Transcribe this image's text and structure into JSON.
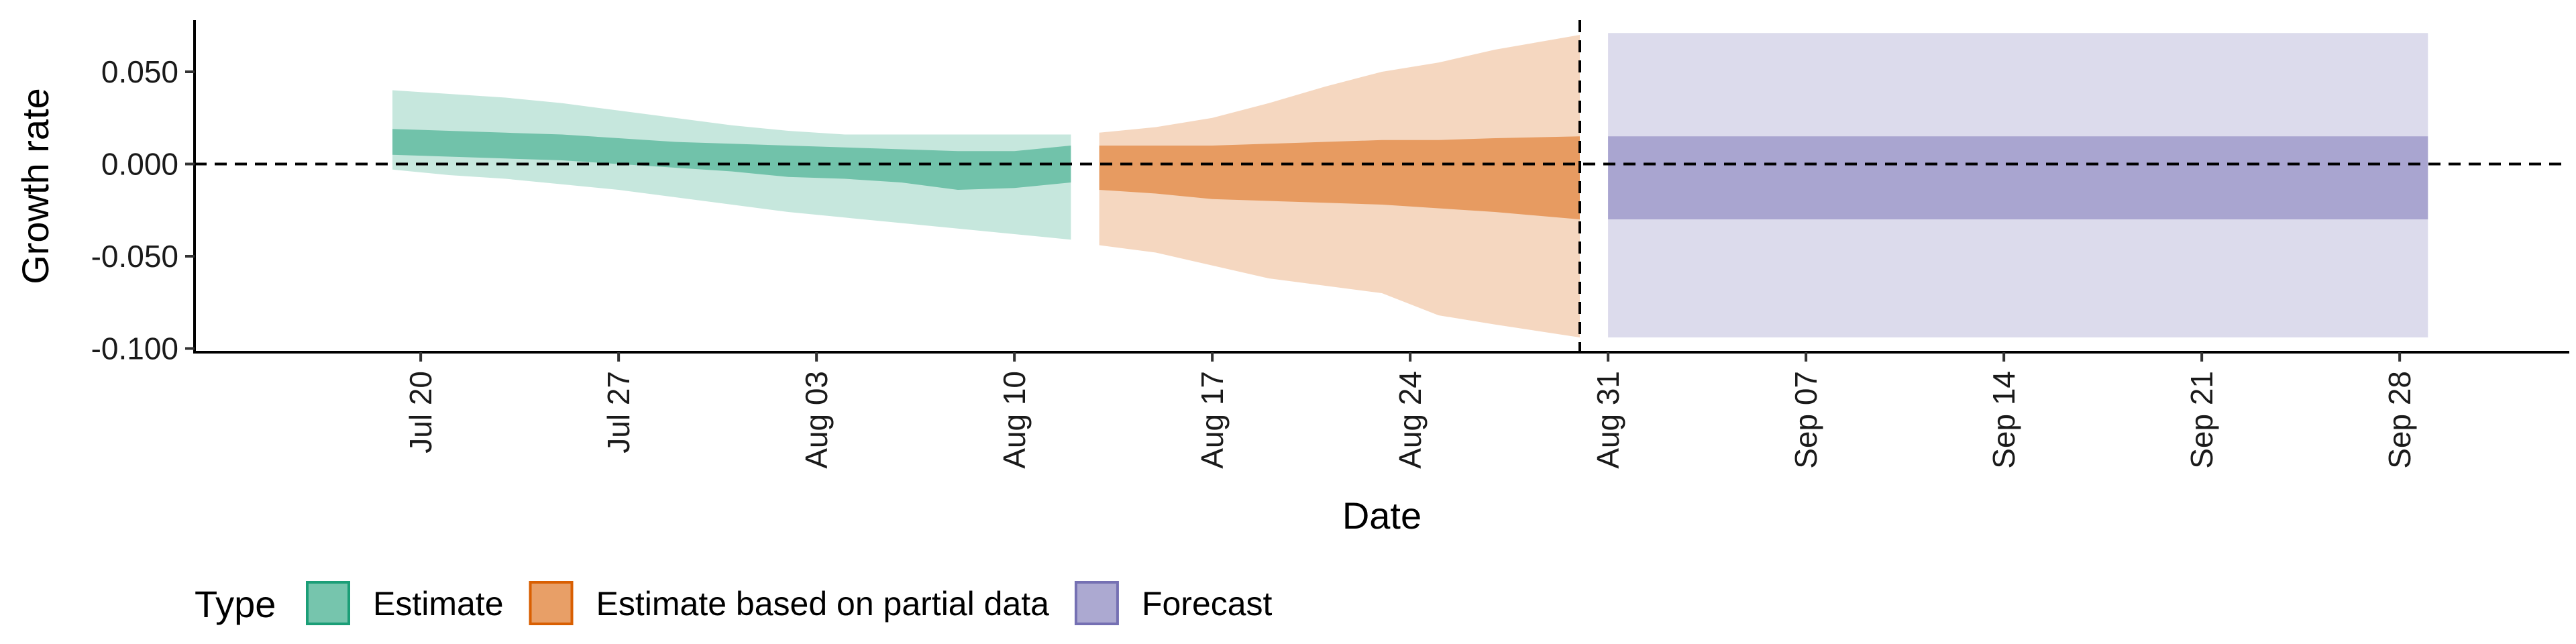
{
  "chart_data": {
    "type": "area",
    "xlabel": "Date",
    "ylabel": "Growth rate",
    "x_axis": {
      "type": "date",
      "range": [
        "2020-07-12",
        "2020-10-04"
      ],
      "tick_dates": [
        "2020-07-20",
        "2020-07-27",
        "2020-08-03",
        "2020-08-10",
        "2020-08-17",
        "2020-08-24",
        "2020-08-31",
        "2020-09-07",
        "2020-09-14",
        "2020-09-21",
        "2020-09-28"
      ],
      "tick_labels": [
        "Jul 20",
        "Jul 27",
        "Aug 03",
        "Aug 10",
        "Aug 17",
        "Aug 24",
        "Aug 31",
        "Sep 07",
        "Sep 14",
        "Sep 21",
        "Sep 28"
      ],
      "label_rotation": "vertical"
    },
    "y_axis": {
      "range": [
        -0.102,
        0.078
      ],
      "ticks": [
        0.05,
        0.0,
        -0.05,
        -0.1
      ],
      "tick_labels": [
        "0.050",
        "0.000",
        "-0.050",
        "-0.100"
      ]
    },
    "grid": false,
    "reference_lines": {
      "horizontal_y": 0,
      "vertical_date": "2020-08-30",
      "style": "dashed"
    },
    "legend": {
      "title": "Type",
      "position": "bottom-left",
      "entries": [
        {
          "label": "Estimate",
          "color": "#1b9e77"
        },
        {
          "label": "Estimate based on partial data",
          "color": "#d95f02"
        },
        {
          "label": "Forecast",
          "color": "#7570b3"
        }
      ]
    },
    "series": [
      {
        "name": "Estimate",
        "color": "#1b9e77",
        "dates": [
          "2020-07-19",
          "2020-07-21",
          "2020-07-23",
          "2020-07-25",
          "2020-07-27",
          "2020-07-29",
          "2020-07-31",
          "2020-08-02",
          "2020-08-04",
          "2020-08-06",
          "2020-08-08",
          "2020-08-10",
          "2020-08-12"
        ],
        "lower_90": [
          -0.003,
          -0.006,
          -0.008,
          -0.011,
          -0.014,
          -0.018,
          -0.022,
          -0.026,
          -0.029,
          -0.032,
          -0.035,
          -0.038,
          -0.041
        ],
        "lower_50": [
          0.005,
          0.004,
          0.003,
          0.002,
          0.0,
          -0.002,
          -0.004,
          -0.007,
          -0.008,
          -0.01,
          -0.014,
          -0.013,
          -0.01
        ],
        "upper_50": [
          0.019,
          0.018,
          0.017,
          0.016,
          0.014,
          0.012,
          0.011,
          0.01,
          0.009,
          0.008,
          0.007,
          0.007,
          0.01
        ],
        "upper_90": [
          0.04,
          0.038,
          0.036,
          0.033,
          0.029,
          0.025,
          0.021,
          0.018,
          0.016,
          0.016,
          0.016,
          0.016,
          0.016
        ]
      },
      {
        "name": "Estimate based on partial data",
        "color": "#d95f02",
        "dates": [
          "2020-08-13",
          "2020-08-15",
          "2020-08-17",
          "2020-08-19",
          "2020-08-21",
          "2020-08-23",
          "2020-08-25",
          "2020-08-27",
          "2020-08-30"
        ],
        "lower_90": [
          -0.044,
          -0.048,
          -0.055,
          -0.062,
          -0.066,
          -0.07,
          -0.082,
          -0.087,
          -0.094
        ],
        "lower_50": [
          -0.014,
          -0.016,
          -0.019,
          -0.02,
          -0.021,
          -0.022,
          -0.024,
          -0.026,
          -0.03
        ],
        "upper_50": [
          0.01,
          0.01,
          0.01,
          0.011,
          0.012,
          0.013,
          0.013,
          0.014,
          0.015
        ],
        "upper_90": [
          0.017,
          0.02,
          0.025,
          0.033,
          0.042,
          0.05,
          0.055,
          0.062,
          0.07
        ]
      },
      {
        "name": "Forecast",
        "color": "#7570b3",
        "dates": [
          "2020-08-31",
          "2020-09-29"
        ],
        "lower_90": [
          -0.094,
          -0.094
        ],
        "lower_50": [
          -0.03,
          -0.03
        ],
        "upper_50": [
          0.015,
          0.015
        ],
        "upper_90": [
          0.071,
          0.071
        ]
      }
    ]
  }
}
